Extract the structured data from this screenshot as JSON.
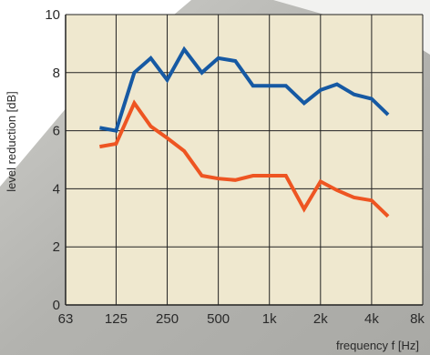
{
  "chart_data": {
    "type": "line",
    "title": "",
    "xlabel": "frequency f [Hz]",
    "ylabel": "level reduction [dB]",
    "x_scale": "log2",
    "x_tick_labels": [
      "63",
      "125",
      "250",
      "500",
      "1k",
      "2k",
      "4k",
      "8k"
    ],
    "x_tick_values": [
      63,
      125,
      250,
      500,
      1000,
      2000,
      4000,
      8000
    ],
    "y_ticks": [
      0,
      2,
      4,
      6,
      8,
      10
    ],
    "ylim": [
      0,
      10
    ],
    "grid": true,
    "x": [
      100,
      125,
      160,
      200,
      250,
      315,
      400,
      500,
      630,
      800,
      1000,
      1250,
      1600,
      2000,
      2500,
      3150,
      4000,
      5000
    ],
    "series": [
      {
        "color": "#1659a3",
        "values": [
          6.1,
          6.0,
          8.0,
          8.5,
          7.75,
          8.8,
          8.0,
          8.5,
          8.4,
          7.55,
          7.55,
          7.55,
          6.95,
          7.4,
          7.6,
          7.25,
          7.1,
          6.55
        ]
      },
      {
        "color": "#ee5522",
        "values": [
          5.45,
          5.55,
          6.95,
          6.15,
          5.75,
          5.3,
          4.45,
          4.35,
          4.3,
          4.45,
          4.45,
          4.45,
          3.3,
          4.25,
          3.95,
          3.7,
          3.6,
          3.05
        ]
      }
    ],
    "plot_background": "#efe8cf",
    "grid_color": "#222222"
  }
}
